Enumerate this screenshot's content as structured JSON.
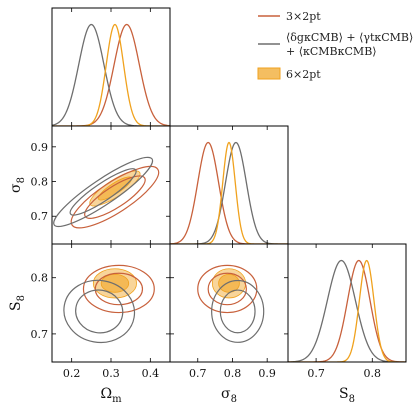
{
  "chart_data": {
    "type": "corner",
    "parameters": [
      {
        "key": "om",
        "label": "Ωm",
        "range": [
          0.15,
          0.45
        ],
        "ticks": [
          {
            "v": 0.2,
            "t": "0.2"
          },
          {
            "v": 0.3,
            "t": "0.3"
          },
          {
            "v": 0.4,
            "t": "0.4"
          }
        ]
      },
      {
        "key": "s8",
        "label": "σ8",
        "range": [
          0.62,
          0.96
        ],
        "ticks": [
          {
            "v": 0.7,
            "t": "0.7"
          },
          {
            "v": 0.8,
            "t": "0.8"
          },
          {
            "v": 0.9,
            "t": "0.9"
          }
        ]
      },
      {
        "key": "S8",
        "label": "S8",
        "range": [
          0.65,
          0.86
        ],
        "ticks": [
          {
            "v": 0.7,
            "t": "0.7"
          },
          {
            "v": 0.8,
            "t": "0.8"
          }
        ]
      }
    ],
    "series": [
      {
        "name": "3×2pt",
        "color": "#c8613c",
        "filled": false,
        "marginals": {
          "om": {
            "mu": 0.34,
            "sigma": 0.032
          },
          "s8": {
            "mu": 0.73,
            "sigma": 0.03
          },
          "S8": {
            "mu": 0.776,
            "sigma": 0.02
          }
        },
        "contours": {
          "om-s8": {
            "center": [
              0.31,
              0.755
            ],
            "radii": [
              [
                0.09,
                0.03,
                -33
              ],
              [
                0.13,
                0.044,
                -33
              ]
            ]
          },
          "om-S8": {
            "center": [
              0.32,
              0.78
            ],
            "radii": [
              [
                0.06,
                0.028,
                0
              ],
              [
                0.09,
                0.042,
                0
              ]
            ]
          },
          "s8-S8": {
            "center": [
              0.785,
              0.78
            ],
            "radii": [
              [
                0.055,
                0.028,
                0
              ],
              [
                0.085,
                0.042,
                0
              ]
            ]
          }
        }
      },
      {
        "name": "⟨δgκCMB⟩ + ⟨γtκCMB⟩ + ⟨κCMBκCMB⟩",
        "color": "#6e6e6e",
        "filled": false,
        "marginals": {
          "om": {
            "mu": 0.25,
            "sigma": 0.032
          },
          "s8": {
            "mu": 0.81,
            "sigma": 0.03
          },
          "S8": {
            "mu": 0.745,
            "sigma": 0.025
          }
        },
        "contours": {
          "om-s8": {
            "center": [
              0.28,
              0.77
            ],
            "radii": [
              [
                0.1,
                0.025,
                -34
              ],
              [
                0.15,
                0.036,
                -34
              ]
            ]
          },
          "om-S8": {
            "center": [
              0.27,
              0.74
            ],
            "radii": [
              [
                0.06,
                0.038,
                10
              ],
              [
                0.09,
                0.055,
                10
              ]
            ]
          },
          "s8-S8": {
            "center": [
              0.815,
              0.74
            ],
            "radii": [
              [
                0.05,
                0.038,
                0
              ],
              [
                0.075,
                0.055,
                0
              ]
            ]
          }
        }
      },
      {
        "name": "6×2pt",
        "color": "#f0a21e",
        "filled": true,
        "marginals": {
          "om": {
            "mu": 0.31,
            "sigma": 0.022
          },
          "s8": {
            "mu": 0.79,
            "sigma": 0.018
          },
          "S8": {
            "mu": 0.79,
            "sigma": 0.013
          }
        },
        "contours": {
          "om-s8": {
            "center": [
              0.31,
              0.78
            ],
            "radii": [
              [
                0.05,
                0.015,
                -33
              ],
              [
                0.075,
                0.024,
                -33
              ]
            ]
          },
          "om-S8": {
            "center": [
              0.31,
              0.79
            ],
            "radii": [
              [
                0.035,
                0.016,
                0
              ],
              [
                0.055,
                0.026,
                0
              ]
            ]
          },
          "s8-S8": {
            "center": [
              0.79,
              0.79
            ],
            "radii": [
              [
                0.03,
                0.016,
                0
              ],
              [
                0.048,
                0.026,
                0
              ]
            ]
          }
        }
      }
    ],
    "legend_placement": "top-right"
  }
}
